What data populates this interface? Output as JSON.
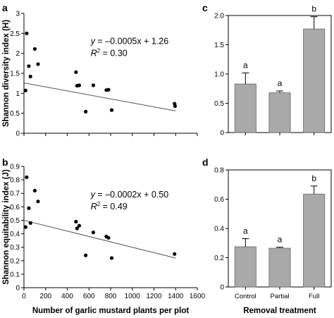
{
  "chart_data": [
    {
      "panel": "a",
      "type": "scatter",
      "ylabel": "Shannon diversity index (H)",
      "xlabel": "",
      "xlim": [
        0,
        1600
      ],
      "ylim": [
        0,
        3
      ],
      "xticks": [],
      "yticks": [
        "0",
        "0.5",
        "1",
        "1.5",
        "2",
        "2.5",
        "3"
      ],
      "x": [
        15,
        25,
        45,
        60,
        100,
        130,
        480,
        490,
        510,
        640,
        760,
        780,
        570,
        810,
        1390,
        1395
      ],
      "y": [
        1.07,
        2.5,
        1.68,
        1.42,
        2.11,
        1.73,
        1.53,
        1.19,
        1.2,
        1.2,
        1.08,
        1.09,
        0.54,
        0.58,
        0.74,
        0.68
      ],
      "fit": {
        "intercept": 1.26,
        "slope": -0.0005,
        "x_range": [
          0,
          1400
        ]
      },
      "annotations": {
        "equation_var": "y",
        "equation_rest": " = –0.0005x + 1.26",
        "r2_var": "R",
        "r2_exp": "2",
        "r2_rest": " = 0.30"
      }
    },
    {
      "panel": "b",
      "type": "scatter",
      "ylabel": "Shannon equitability index (J)",
      "xlabel": "Number of garlic mustard plants per plot",
      "xlim": [
        0,
        1600
      ],
      "ylim": [
        0,
        0.9
      ],
      "xticks": [
        "0",
        "200",
        "400",
        "600",
        "800",
        "1000",
        "1200",
        "1400",
        "1600"
      ],
      "yticks": [
        "0",
        "0.1",
        "0.2",
        "0.3",
        "0.4",
        "0.5",
        "0.6",
        "0.7",
        "0.8",
        "0.9"
      ],
      "x": [
        15,
        25,
        45,
        60,
        100,
        130,
        480,
        490,
        510,
        640,
        760,
        780,
        570,
        810,
        1390
      ],
      "y": [
        0.45,
        0.82,
        0.59,
        0.48,
        0.72,
        0.64,
        0.49,
        0.44,
        0.46,
        0.41,
        0.38,
        0.37,
        0.24,
        0.22,
        0.25
      ],
      "fit": {
        "intercept": 0.5,
        "slope": -0.0002,
        "x_range": [
          0,
          1400
        ]
      },
      "annotations": {
        "equation_var": "y",
        "equation_rest": " = –0.0002x + 0.50",
        "r2_var": "R",
        "r2_exp": "2",
        "r2_rest": " = 0.49"
      }
    },
    {
      "panel": "c",
      "type": "bar",
      "ylabel": "",
      "xlabel": "",
      "categories": [
        "Control",
        "Partial",
        "Full"
      ],
      "show_category_labels": false,
      "values": [
        0.83,
        0.68,
        1.77
      ],
      "errors": [
        0.19,
        0.03,
        0.21
      ],
      "letters": [
        "a",
        "a",
        "b"
      ],
      "ylim": [
        0,
        2.0
      ],
      "yticks": [
        "0",
        "0.5",
        "1.0",
        "1.5",
        "2.0"
      ],
      "bar_color": "#a9a9a9"
    },
    {
      "panel": "d",
      "type": "bar",
      "ylabel": "",
      "xlabel": "Removal treatment",
      "categories": [
        "Control",
        "Partial",
        "Full"
      ],
      "show_category_labels": true,
      "values": [
        0.275,
        0.265,
        0.635
      ],
      "errors": [
        0.055,
        0.007,
        0.055
      ],
      "letters": [
        "a",
        "a",
        "b"
      ],
      "ylim": [
        0,
        0.8
      ],
      "yticks": [
        "0",
        "0.2",
        "0.4",
        "0.6",
        "0.8"
      ],
      "bar_color": "#a9a9a9"
    }
  ]
}
